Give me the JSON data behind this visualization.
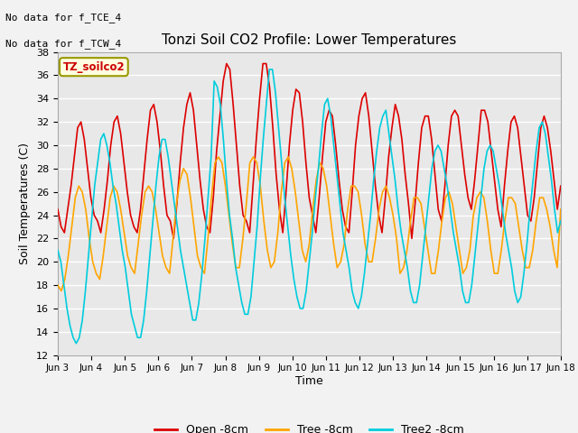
{
  "title": "Tonzi Soil CO2 Profile: Lower Temperatures",
  "ylabel": "Soil Temperatures (C)",
  "xlabel": "Time",
  "annotations": [
    "No data for f_TCE_4",
    "No data for f_TCW_4"
  ],
  "legend_box_label": "TZ_soilco2",
  "ylim": [
    12,
    38
  ],
  "yticks": [
    12,
    14,
    16,
    18,
    20,
    22,
    24,
    26,
    28,
    30,
    32,
    34,
    36,
    38
  ],
  "xtick_labels": [
    "Jun 3",
    "Jun 4",
    "Jun 5",
    "Jun 6",
    "Jun 7",
    "Jun 8",
    "Jun 9",
    "Jun 10",
    "Jun 11",
    "Jun 12",
    "Jun 13",
    "Jun 14",
    "Jun 15",
    "Jun 16",
    "Jun 17",
    "Jun 18"
  ],
  "colors": {
    "open": "#DD0000",
    "tree": "#FFA500",
    "tree2": "#00CCDD"
  },
  "bg_color": "#E8E8E8",
  "grid_color": "#FFFFFF",
  "open_8cm": [
    24.5,
    23.0,
    22.5,
    24.5,
    26.5,
    29.0,
    31.5,
    32.0,
    30.5,
    28.0,
    25.5,
    24.0,
    23.5,
    22.5,
    24.5,
    27.0,
    30.0,
    32.0,
    32.5,
    31.0,
    28.5,
    26.0,
    24.0,
    23.0,
    22.5,
    24.5,
    27.5,
    30.5,
    33.0,
    33.5,
    32.0,
    29.5,
    26.5,
    24.0,
    23.5,
    22.0,
    25.0,
    28.5,
    31.5,
    33.5,
    34.5,
    33.0,
    30.0,
    27.0,
    24.5,
    23.0,
    22.5,
    25.5,
    29.5,
    32.5,
    35.5,
    37.0,
    36.5,
    33.5,
    30.0,
    26.5,
    24.0,
    23.5,
    22.5,
    26.5,
    30.5,
    34.0,
    37.0,
    37.0,
    35.0,
    31.5,
    27.5,
    24.5,
    22.5,
    26.0,
    30.0,
    33.0,
    34.8,
    34.5,
    32.0,
    28.5,
    25.5,
    24.0,
    22.5,
    25.5,
    29.0,
    32.0,
    33.0,
    32.5,
    30.0,
    27.0,
    24.5,
    23.0,
    22.5,
    26.0,
    30.0,
    32.5,
    34.0,
    34.5,
    32.5,
    29.5,
    26.5,
    24.0,
    22.5,
    25.5,
    29.0,
    31.5,
    33.5,
    32.5,
    30.5,
    27.5,
    25.0,
    22.0,
    25.0,
    28.5,
    31.5,
    32.5,
    32.5,
    30.5,
    27.5,
    24.5,
    23.5,
    26.5,
    30.0,
    32.5,
    33.0,
    32.5,
    30.0,
    27.5,
    25.5,
    24.5,
    27.0,
    30.0,
    33.0,
    33.0,
    32.0,
    29.5,
    27.0,
    24.5,
    23.0,
    26.5,
    29.5,
    32.0,
    32.5,
    31.5,
    29.0,
    26.5,
    24.0,
    23.5,
    25.5,
    28.5,
    31.5,
    32.5,
    31.5,
    29.5,
    27.0,
    24.5,
    26.5
  ],
  "tree_8cm": [
    18.0,
    17.5,
    18.5,
    20.5,
    23.0,
    25.5,
    26.5,
    26.0,
    24.5,
    22.0,
    20.0,
    19.0,
    18.5,
    20.5,
    23.0,
    25.5,
    26.5,
    26.0,
    24.5,
    22.5,
    20.5,
    19.5,
    19.0,
    21.5,
    24.0,
    26.0,
    26.5,
    26.0,
    24.5,
    22.5,
    20.5,
    19.5,
    19.0,
    22.0,
    25.0,
    27.0,
    28.0,
    27.5,
    25.5,
    23.0,
    20.5,
    19.5,
    19.0,
    22.0,
    25.5,
    28.5,
    29.0,
    28.5,
    26.5,
    24.0,
    21.5,
    19.5,
    19.5,
    22.0,
    25.0,
    28.5,
    29.0,
    28.5,
    26.5,
    23.5,
    21.0,
    19.5,
    20.0,
    22.5,
    26.0,
    28.5,
    29.0,
    28.0,
    26.0,
    23.5,
    21.0,
    20.0,
    21.5,
    24.5,
    27.0,
    28.5,
    28.0,
    26.5,
    24.0,
    21.5,
    19.5,
    20.0,
    21.5,
    24.5,
    26.5,
    26.5,
    26.0,
    24.0,
    21.5,
    20.0,
    20.0,
    22.0,
    24.5,
    26.0,
    26.5,
    25.5,
    24.0,
    22.0,
    19.0,
    19.5,
    21.0,
    23.5,
    25.5,
    25.5,
    25.0,
    23.0,
    21.0,
    19.0,
    19.0,
    21.0,
    23.5,
    25.5,
    26.0,
    25.0,
    23.0,
    21.0,
    19.0,
    19.5,
    21.0,
    24.0,
    25.5,
    26.0,
    25.5,
    23.5,
    21.0,
    19.0,
    19.0,
    21.0,
    23.5,
    25.5,
    25.5,
    25.0,
    23.0,
    21.0,
    19.5,
    19.5,
    21.0,
    23.5,
    25.5,
    25.5,
    24.5,
    23.0,
    21.0,
    19.5,
    24.5
  ],
  "tree2_8cm": [
    21.0,
    20.0,
    18.0,
    16.0,
    14.5,
    13.5,
    13.0,
    13.5,
    15.0,
    17.5,
    20.5,
    23.5,
    26.5,
    28.5,
    30.5,
    31.0,
    30.0,
    28.5,
    26.5,
    25.0,
    23.0,
    21.0,
    19.5,
    17.5,
    15.5,
    14.5,
    13.5,
    13.5,
    15.0,
    17.5,
    20.5,
    23.5,
    26.5,
    29.0,
    30.5,
    30.5,
    29.0,
    27.0,
    25.0,
    23.0,
    21.0,
    19.5,
    18.0,
    16.5,
    15.0,
    15.0,
    16.5,
    19.0,
    22.0,
    25.5,
    29.0,
    35.5,
    35.0,
    33.5,
    30.5,
    27.0,
    24.0,
    22.0,
    19.5,
    18.0,
    16.5,
    15.5,
    15.5,
    17.0,
    20.0,
    23.0,
    27.0,
    30.5,
    33.5,
    36.5,
    36.5,
    34.5,
    31.5,
    28.5,
    25.5,
    23.0,
    20.5,
    18.5,
    17.0,
    16.0,
    16.0,
    17.5,
    20.0,
    22.5,
    25.5,
    28.0,
    31.0,
    33.5,
    34.0,
    32.5,
    30.0,
    27.5,
    25.0,
    22.5,
    21.0,
    19.5,
    17.5,
    16.5,
    16.0,
    17.0,
    19.0,
    21.5,
    24.0,
    27.0,
    29.5,
    31.5,
    32.5,
    33.0,
    31.0,
    29.0,
    27.0,
    24.5,
    22.5,
    21.0,
    19.5,
    17.5,
    16.5,
    16.5,
    18.0,
    20.5,
    23.0,
    25.5,
    28.0,
    29.5,
    30.0,
    29.5,
    28.0,
    26.5,
    24.5,
    22.5,
    21.0,
    19.5,
    17.5,
    16.5,
    16.5,
    18.0,
    20.5,
    23.0,
    25.5,
    28.0,
    29.5,
    30.0,
    29.5,
    28.0,
    26.5,
    24.5,
    22.5,
    21.0,
    19.5,
    17.5,
    16.5,
    17.0,
    19.0,
    21.5,
    24.5,
    27.0,
    29.5,
    31.5,
    32.0,
    31.0,
    29.0,
    27.0,
    24.5,
    22.5,
    23.5
  ]
}
